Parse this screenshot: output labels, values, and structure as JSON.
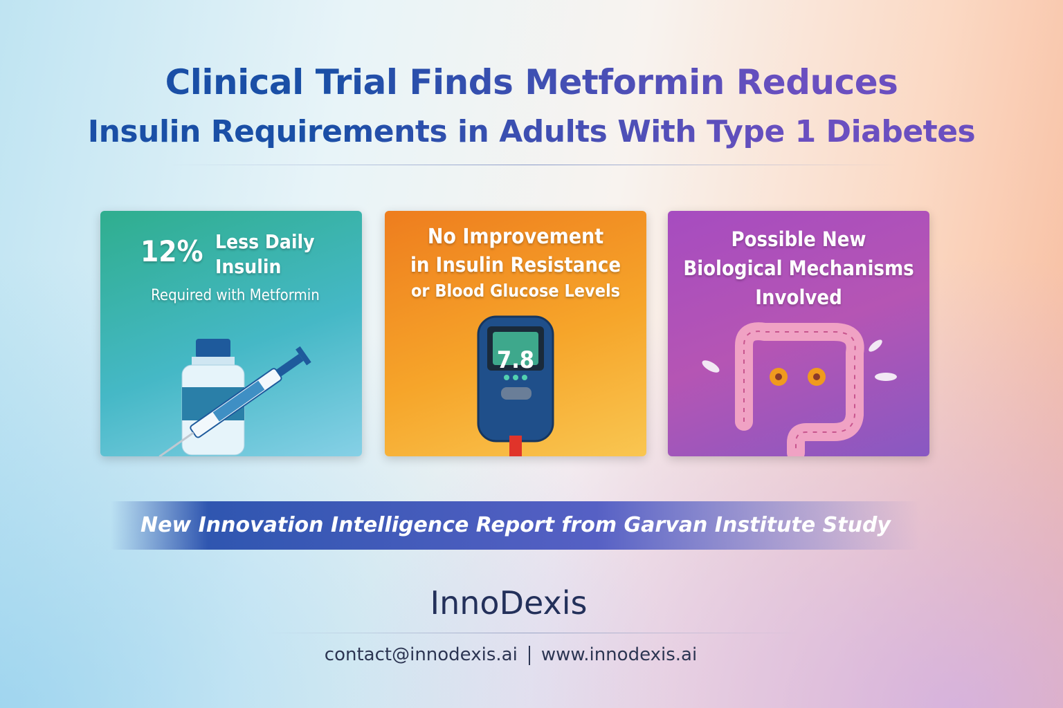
{
  "header": {
    "title_line1": "Clinical Trial Finds Metformin Reduces",
    "title_line2": "Insulin Requirements in Adults With Type 1 Diabetes"
  },
  "cards": [
    {
      "stat": "12%",
      "lines": [
        "Less Daily",
        "Insulin"
      ],
      "subtitle": "Required with Metformin"
    },
    {
      "lines": [
        "No Improvement",
        "in Insulin Resistance",
        "or Blood Glucose Levels"
      ],
      "display": "7.8"
    },
    {
      "lines": [
        "Possible New",
        "Biological Mechanisms",
        "Involved"
      ]
    }
  ],
  "banner": {
    "text": "New Innovation Intelligence Report from Garvan Institute Study"
  },
  "footer": {
    "brand": "InnoDexis",
    "email": "contact@innodexis.ai",
    "website": "www.innodexis.ai"
  }
}
